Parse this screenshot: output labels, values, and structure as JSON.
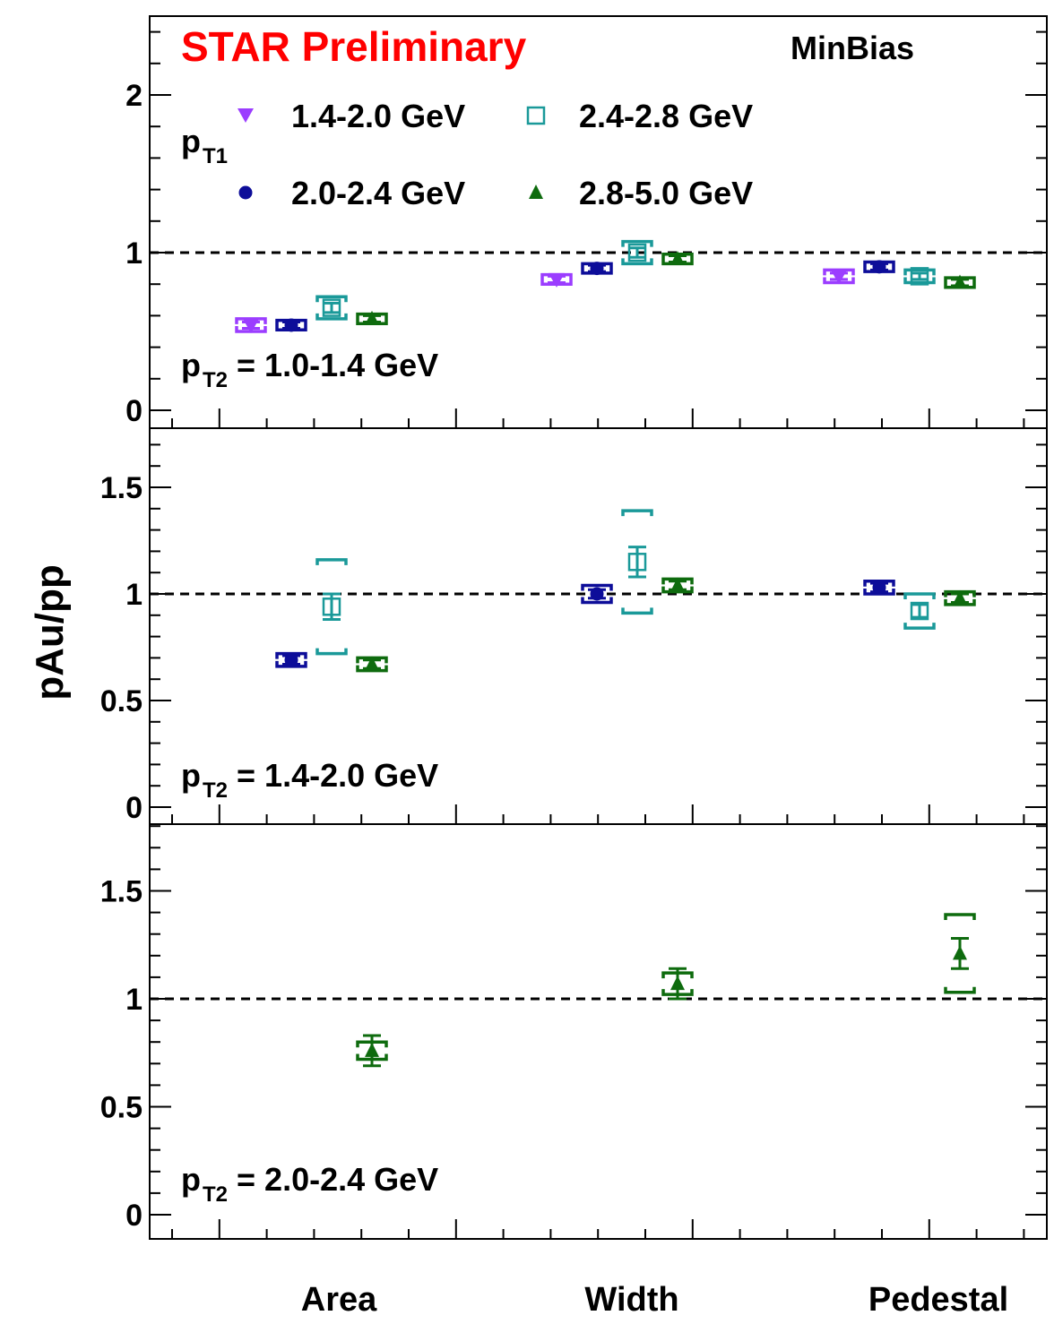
{
  "colors": {
    "violet": "#9b3dff",
    "navy": "#0d0d99",
    "teal": "#1a9999",
    "green": "#0e6b0e",
    "red": "#ff0000",
    "axis": "#000000"
  },
  "header": {
    "preliminary_label": "STAR Preliminary",
    "trigger_label": "MinBias"
  },
  "legend": {
    "title_main": "p",
    "title_sub": "T1",
    "entries": [
      {
        "label": "1.4-2.0 GeV",
        "marker": "triangle-down",
        "color": "violet"
      },
      {
        "label": "2.4-2.8 GeV",
        "marker": "open-square",
        "color": "teal"
      },
      {
        "label": "2.0-2.4 GeV",
        "marker": "circle",
        "color": "navy"
      },
      {
        "label": "2.8-5.0 GeV",
        "marker": "triangle-up",
        "color": "green"
      }
    ]
  },
  "y_axis_title": "pAu/pp",
  "categories": [
    "Area",
    "Width",
    "Pedestal"
  ],
  "chart_data": {
    "type": "scatter",
    "reference_line": 1,
    "categories": [
      "Area",
      "Width",
      "Pedestal"
    ],
    "panels": [
      {
        "pt2_main": "p",
        "pt2_sub": "T2",
        "pt2_value": "= 1.0-1.4 GeV",
        "ylim": [
          -0.05,
          2.5
        ],
        "yticks": [
          0,
          1,
          2
        ],
        "yticklabels": [
          "0",
          "1",
          "2"
        ],
        "points": [
          {
            "series": "1.4-2.0 GeV",
            "category": "Area",
            "y": 0.54,
            "stat": 0.02,
            "sys": 0.04
          },
          {
            "series": "2.0-2.4 GeV",
            "category": "Area",
            "y": 0.54,
            "stat": 0.02,
            "sys": 0.03
          },
          {
            "series": "2.4-2.8 GeV",
            "category": "Area",
            "y": 0.65,
            "stat": 0.03,
            "sys": 0.07
          },
          {
            "series": "2.8-5.0 GeV",
            "category": "Area",
            "y": 0.58,
            "stat": 0.02,
            "sys": 0.03
          },
          {
            "series": "1.4-2.0 GeV",
            "category": "Width",
            "y": 0.83,
            "stat": 0.02,
            "sys": 0.03
          },
          {
            "series": "2.0-2.4 GeV",
            "category": "Width",
            "y": 0.9,
            "stat": 0.02,
            "sys": 0.03
          },
          {
            "series": "2.4-2.8 GeV",
            "category": "Width",
            "y": 1.0,
            "stat": 0.03,
            "sys": 0.07
          },
          {
            "series": "2.8-5.0 GeV",
            "category": "Width",
            "y": 0.96,
            "stat": 0.02,
            "sys": 0.03
          },
          {
            "series": "1.4-2.0 GeV",
            "category": "Pedestal",
            "y": 0.85,
            "stat": 0.02,
            "sys": 0.04
          },
          {
            "series": "2.0-2.4 GeV",
            "category": "Pedestal",
            "y": 0.91,
            "stat": 0.02,
            "sys": 0.03
          },
          {
            "series": "2.4-2.8 GeV",
            "category": "Pedestal",
            "y": 0.85,
            "stat": 0.02,
            "sys": 0.04
          },
          {
            "series": "2.8-5.0 GeV",
            "category": "Pedestal",
            "y": 0.81,
            "stat": 0.02,
            "sys": 0.03
          }
        ]
      },
      {
        "pt2_main": "p",
        "pt2_sub": "T2",
        "pt2_value": "= 1.4-2.0 GeV",
        "ylim": [
          -0.05,
          1.8
        ],
        "yticks": [
          0,
          0.5,
          1,
          1.5
        ],
        "yticklabels": [
          "0",
          "0.5",
          "1",
          "1.5"
        ],
        "points": [
          {
            "series": "2.0-2.4 GeV",
            "category": "Area",
            "y": 0.69,
            "stat": 0.02,
            "sys": 0.03
          },
          {
            "series": "2.4-2.8 GeV",
            "category": "Area",
            "y": 0.94,
            "stat": 0.06,
            "sys": 0.22
          },
          {
            "series": "2.8-5.0 GeV",
            "category": "Area",
            "y": 0.67,
            "stat": 0.02,
            "sys": 0.03
          },
          {
            "series": "2.0-2.4 GeV",
            "category": "Width",
            "y": 1.0,
            "stat": 0.02,
            "sys": 0.04
          },
          {
            "series": "2.4-2.8 GeV",
            "category": "Width",
            "y": 1.15,
            "stat": 0.07,
            "sys": 0.24
          },
          {
            "series": "2.8-5.0 GeV",
            "category": "Width",
            "y": 1.04,
            "stat": 0.02,
            "sys": 0.03
          },
          {
            "series": "2.0-2.4 GeV",
            "category": "Pedestal",
            "y": 1.03,
            "stat": 0.02,
            "sys": 0.03
          },
          {
            "series": "2.4-2.8 GeV",
            "category": "Pedestal",
            "y": 0.92,
            "stat": 0.03,
            "sys": 0.08
          },
          {
            "series": "2.8-5.0 GeV",
            "category": "Pedestal",
            "y": 0.98,
            "stat": 0.02,
            "sys": 0.03
          }
        ]
      },
      {
        "pt2_main": "p",
        "pt2_sub": "T2",
        "pt2_value": "= 2.0-2.4 GeV",
        "ylim": [
          -0.05,
          1.8
        ],
        "yticks": [
          0,
          0.5,
          1,
          1.5
        ],
        "yticklabels": [
          "0",
          "0.5",
          "1",
          "1.5"
        ],
        "points": [
          {
            "series": "2.8-5.0 GeV",
            "category": "Area",
            "y": 0.76,
            "stat": 0.07,
            "sys": 0.04
          },
          {
            "series": "2.8-5.0 GeV",
            "category": "Width",
            "y": 1.07,
            "stat": 0.07,
            "sys": 0.05
          },
          {
            "series": "2.8-5.0 GeV",
            "category": "Pedestal",
            "y": 1.21,
            "stat": 0.07,
            "sys": 0.18
          }
        ]
      }
    ]
  }
}
